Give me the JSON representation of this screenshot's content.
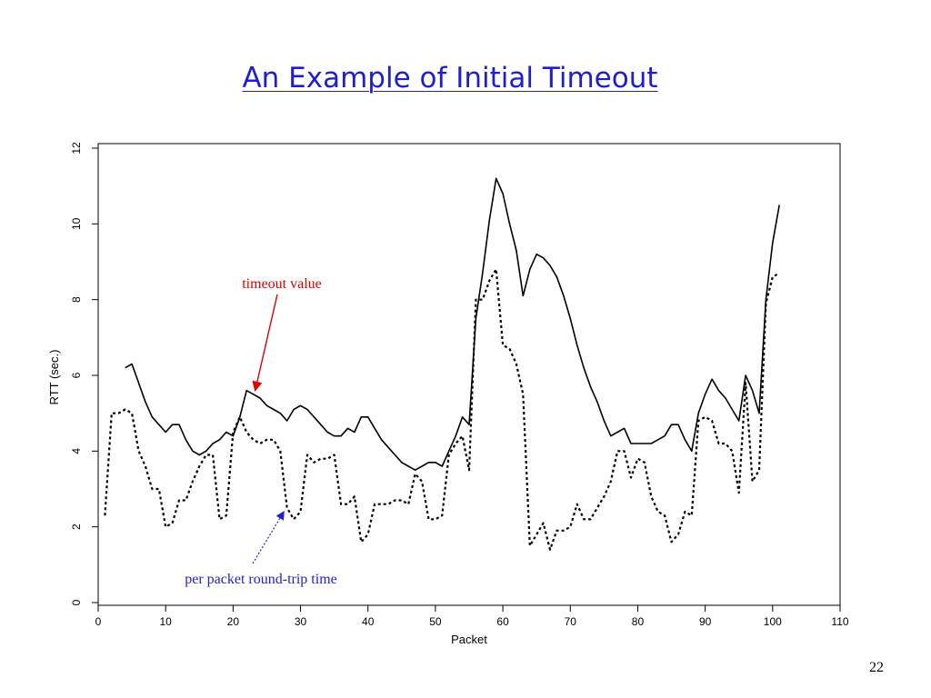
{
  "slide": {
    "title": "An Example of Initial Timeout",
    "page_number": "22"
  },
  "colors": {
    "title": "#1f1fd0",
    "timeout_annotation": "#e00000",
    "rtt_annotation": "#1f1fd0",
    "series": "#000000"
  },
  "chart_data": {
    "type": "line",
    "xlabel": "Packet",
    "ylabel": "RTT (sec.)",
    "xlim": [
      0,
      110
    ],
    "ylim": [
      0,
      12
    ],
    "xticks": [
      0,
      10,
      20,
      30,
      40,
      50,
      60,
      70,
      80,
      90,
      100,
      110
    ],
    "yticks": [
      0,
      2,
      4,
      6,
      8,
      10,
      12
    ],
    "grid": false,
    "legend": "none",
    "annotations": [
      {
        "text": "timeout value",
        "target_series": "timeout",
        "point": [
          23,
          5.5
        ]
      },
      {
        "text": "per packet round-trip time",
        "target_series": "rtt",
        "point": [
          27,
          2.5
        ]
      }
    ],
    "series": [
      {
        "id": "timeout",
        "style": "solid",
        "points": [
          [
            4,
            6.2
          ],
          [
            5,
            6.3
          ],
          [
            6,
            5.8
          ],
          [
            7,
            5.3
          ],
          [
            8,
            4.9
          ],
          [
            9,
            4.7
          ],
          [
            10,
            4.5
          ],
          [
            11,
            4.7
          ],
          [
            12,
            4.7
          ],
          [
            13,
            4.3
          ],
          [
            14,
            4.0
          ],
          [
            15,
            3.9
          ],
          [
            16,
            4.0
          ],
          [
            17,
            4.2
          ],
          [
            18,
            4.3
          ],
          [
            19,
            4.5
          ],
          [
            20,
            4.4
          ],
          [
            21,
            4.9
          ],
          [
            22,
            5.6
          ],
          [
            23,
            5.5
          ],
          [
            24,
            5.4
          ],
          [
            25,
            5.2
          ],
          [
            26,
            5.1
          ],
          [
            27,
            5.0
          ],
          [
            28,
            4.8
          ],
          [
            29,
            5.1
          ],
          [
            30,
            5.2
          ],
          [
            31,
            5.1
          ],
          [
            32,
            4.9
          ],
          [
            33,
            4.7
          ],
          [
            34,
            4.5
          ],
          [
            35,
            4.4
          ],
          [
            36,
            4.4
          ],
          [
            37,
            4.6
          ],
          [
            38,
            4.5
          ],
          [
            39,
            4.9
          ],
          [
            40,
            4.9
          ],
          [
            41,
            4.6
          ],
          [
            42,
            4.3
          ],
          [
            43,
            4.1
          ],
          [
            44,
            3.9
          ],
          [
            45,
            3.7
          ],
          [
            46,
            3.6
          ],
          [
            47,
            3.5
          ],
          [
            48,
            3.6
          ],
          [
            49,
            3.7
          ],
          [
            50,
            3.7
          ],
          [
            51,
            3.6
          ],
          [
            52,
            4.0
          ],
          [
            53,
            4.4
          ],
          [
            54,
            4.9
          ],
          [
            55,
            4.7
          ],
          [
            56,
            7.5
          ],
          [
            57,
            8.7
          ],
          [
            58,
            10.1
          ],
          [
            59,
            11.2
          ],
          [
            60,
            10.8
          ],
          [
            61,
            10.0
          ],
          [
            62,
            9.3
          ],
          [
            63,
            8.1
          ],
          [
            64,
            8.8
          ],
          [
            65,
            9.2
          ],
          [
            66,
            9.1
          ],
          [
            67,
            8.9
          ],
          [
            68,
            8.6
          ],
          [
            69,
            8.1
          ],
          [
            70,
            7.5
          ],
          [
            71,
            6.8
          ],
          [
            72,
            6.2
          ],
          [
            73,
            5.7
          ],
          [
            74,
            5.3
          ],
          [
            75,
            4.8
          ],
          [
            76,
            4.4
          ],
          [
            77,
            4.5
          ],
          [
            78,
            4.6
          ],
          [
            79,
            4.2
          ],
          [
            80,
            4.2
          ],
          [
            81,
            4.2
          ],
          [
            82,
            4.2
          ],
          [
            83,
            4.3
          ],
          [
            84,
            4.4
          ],
          [
            85,
            4.7
          ],
          [
            86,
            4.7
          ],
          [
            87,
            4.3
          ],
          [
            88,
            4.0
          ],
          [
            89,
            5.0
          ],
          [
            90,
            5.5
          ],
          [
            91,
            5.9
          ],
          [
            92,
            5.6
          ],
          [
            93,
            5.4
          ],
          [
            94,
            5.1
          ],
          [
            95,
            4.8
          ],
          [
            96,
            6.0
          ],
          [
            97,
            5.6
          ],
          [
            98,
            5.0
          ],
          [
            99,
            8.0
          ],
          [
            100,
            9.5
          ],
          [
            101,
            10.5
          ]
        ]
      },
      {
        "id": "rtt",
        "style": "dashed",
        "points": [
          [
            1,
            2.3
          ],
          [
            2,
            5.0
          ],
          [
            3,
            5.0
          ],
          [
            4,
            5.1
          ],
          [
            5,
            5.0
          ],
          [
            6,
            4.0
          ],
          [
            7,
            3.6
          ],
          [
            8,
            3.0
          ],
          [
            9,
            3.0
          ],
          [
            10,
            2.0
          ],
          [
            11,
            2.1
          ],
          [
            12,
            2.7
          ],
          [
            13,
            2.7
          ],
          [
            14,
            3.2
          ],
          [
            15,
            3.6
          ],
          [
            16,
            3.9
          ],
          [
            17,
            3.9
          ],
          [
            18,
            2.2
          ],
          [
            19,
            2.3
          ],
          [
            20,
            4.5
          ],
          [
            21,
            4.9
          ],
          [
            22,
            4.5
          ],
          [
            23,
            4.3
          ],
          [
            24,
            4.2
          ],
          [
            25,
            4.3
          ],
          [
            26,
            4.3
          ],
          [
            27,
            4.0
          ],
          [
            28,
            2.5
          ],
          [
            29,
            2.2
          ],
          [
            30,
            2.4
          ],
          [
            31,
            3.9
          ],
          [
            32,
            3.7
          ],
          [
            33,
            3.8
          ],
          [
            34,
            3.8
          ],
          [
            35,
            3.9
          ],
          [
            36,
            2.6
          ],
          [
            37,
            2.6
          ],
          [
            38,
            2.8
          ],
          [
            39,
            1.6
          ],
          [
            40,
            1.8
          ],
          [
            41,
            2.6
          ],
          [
            42,
            2.6
          ],
          [
            43,
            2.6
          ],
          [
            44,
            2.7
          ],
          [
            45,
            2.7
          ],
          [
            46,
            2.6
          ],
          [
            47,
            3.4
          ],
          [
            48,
            3.2
          ],
          [
            49,
            2.2
          ],
          [
            50,
            2.2
          ],
          [
            51,
            2.3
          ],
          [
            52,
            3.9
          ],
          [
            53,
            4.2
          ],
          [
            54,
            4.4
          ],
          [
            55,
            3.5
          ],
          [
            56,
            8.0
          ],
          [
            57,
            8.0
          ],
          [
            58,
            8.5
          ],
          [
            59,
            8.8
          ],
          [
            60,
            6.8
          ],
          [
            61,
            6.7
          ],
          [
            62,
            6.3
          ],
          [
            63,
            5.5
          ],
          [
            64,
            1.5
          ],
          [
            65,
            1.8
          ],
          [
            66,
            2.1
          ],
          [
            67,
            1.4
          ],
          [
            68,
            1.9
          ],
          [
            69,
            1.9
          ],
          [
            70,
            2.0
          ],
          [
            71,
            2.6
          ],
          [
            72,
            2.2
          ],
          [
            73,
            2.2
          ],
          [
            74,
            2.5
          ],
          [
            75,
            2.8
          ],
          [
            76,
            3.2
          ],
          [
            77,
            4.0
          ],
          [
            78,
            4.0
          ],
          [
            79,
            3.3
          ],
          [
            80,
            3.8
          ],
          [
            81,
            3.7
          ],
          [
            82,
            2.8
          ],
          [
            83,
            2.4
          ],
          [
            84,
            2.3
          ],
          [
            85,
            1.6
          ],
          [
            86,
            1.8
          ],
          [
            87,
            2.4
          ],
          [
            88,
            2.3
          ],
          [
            89,
            4.8
          ],
          [
            90,
            4.9
          ],
          [
            91,
            4.8
          ],
          [
            92,
            4.2
          ],
          [
            93,
            4.2
          ],
          [
            94,
            4.0
          ],
          [
            95,
            2.9
          ],
          [
            96,
            5.8
          ],
          [
            97,
            3.2
          ],
          [
            98,
            3.5
          ],
          [
            99,
            7.9
          ],
          [
            100,
            8.6
          ],
          [
            101,
            8.7
          ]
        ]
      }
    ]
  }
}
